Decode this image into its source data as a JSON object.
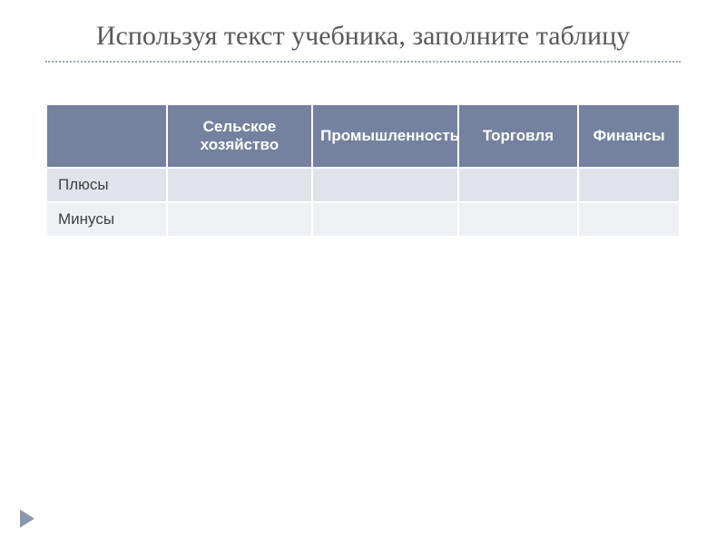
{
  "title": "Используя текст учебника, заполните таблицу",
  "table": {
    "type": "table",
    "header_bg": "#7482a0",
    "header_fg": "#ffffff",
    "row_light_bg": "#e1e3ea",
    "row_dark_bg": "#eef0f4",
    "border_color": "#ffffff",
    "columns": [
      {
        "label": "",
        "width_pct": 19
      },
      {
        "label": "Сельское хозяйство",
        "width_pct": 23
      },
      {
        "label": "Промышленность",
        "width_pct": 23
      },
      {
        "label": "Торговля",
        "width_pct": 19
      },
      {
        "label": "Финансы",
        "width_pct": 16
      }
    ],
    "rows": [
      {
        "label": "Плюсы",
        "cells": [
          "",
          "",
          "",
          ""
        ]
      },
      {
        "label": "Минусы",
        "cells": [
          "",
          "",
          "",
          ""
        ]
      }
    ],
    "header_fontsize": 17,
    "cell_fontsize": 17
  },
  "title_color": "#595959",
  "title_fontsize": 30,
  "divider_color": "#99a3b5",
  "arrow_color": "#8a96ae",
  "background_color": "#ffffff"
}
